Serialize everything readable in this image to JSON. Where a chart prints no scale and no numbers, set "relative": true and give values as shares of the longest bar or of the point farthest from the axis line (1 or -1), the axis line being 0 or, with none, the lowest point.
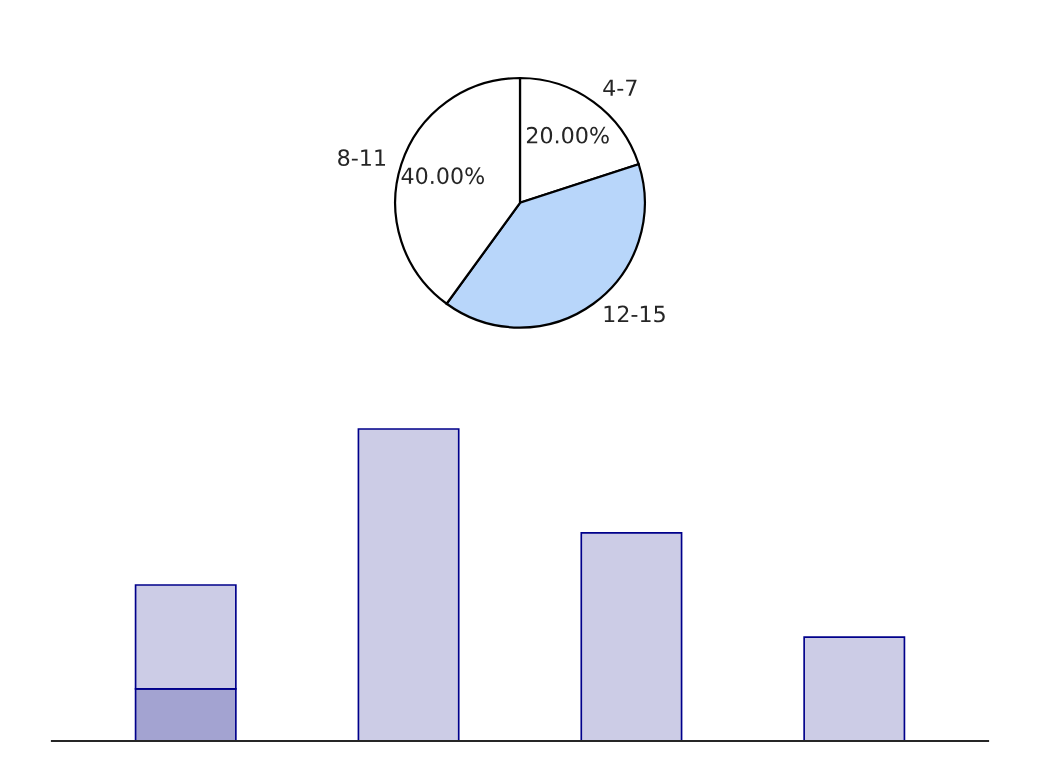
{
  "chart_data": [
    {
      "type": "pie",
      "categories": [
        "4-7",
        "12-15",
        "8-11"
      ],
      "values": [
        20,
        40,
        40
      ],
      "colors": [
        "#ffffff",
        "#b8d6fa",
        "#ffffff"
      ],
      "value_labels": [
        "20.00%",
        null,
        "40.00%"
      ],
      "legend": false
    },
    {
      "type": "bar",
      "relative": true,
      "stacked": true,
      "categories": [
        null,
        null,
        null,
        null
      ],
      "series": [
        {
          "color": "#a3a3d1",
          "values": [
            0.167,
            0,
            0,
            0
          ]
        },
        {
          "color": "#ccccE6",
          "values": [
            0.333,
            1,
            0.667,
            0.333
          ]
        }
      ],
      "legend": false,
      "grid": false
    }
  ]
}
